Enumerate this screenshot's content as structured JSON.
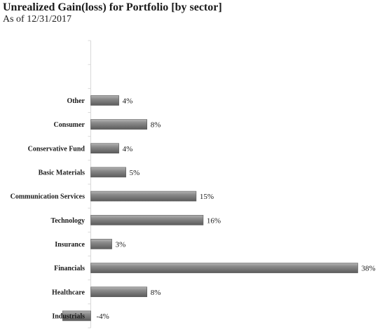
{
  "title": "Unrealized Gain(loss) for Portfolio [by sector]",
  "subtitle": "As of 12/31/2017",
  "chart_data": {
    "type": "bar",
    "orientation": "horizontal",
    "title": "Unrealized Gain(loss) for Portfolio [by sector]",
    "subtitle": "As of 12/31/2017",
    "categories": [
      "Other",
      "Consumer",
      "Conservative Fund",
      "Basic Materials",
      "Communication Services",
      "Technology",
      "Insurance",
      "Financials",
      "Healthcare",
      "Industrials"
    ],
    "values": [
      4,
      8,
      4,
      5,
      15,
      16,
      3,
      38,
      8,
      -4
    ],
    "value_labels": [
      "4%",
      "8%",
      "4%",
      "5%",
      "15%",
      "16%",
      "3%",
      "38%",
      "8%",
      "-4%"
    ],
    "unit": "%",
    "xlim": [
      -4,
      38
    ],
    "empty_rows_above": 2,
    "grid": false,
    "legend": "none",
    "bar_color": "#7a7a7a"
  }
}
